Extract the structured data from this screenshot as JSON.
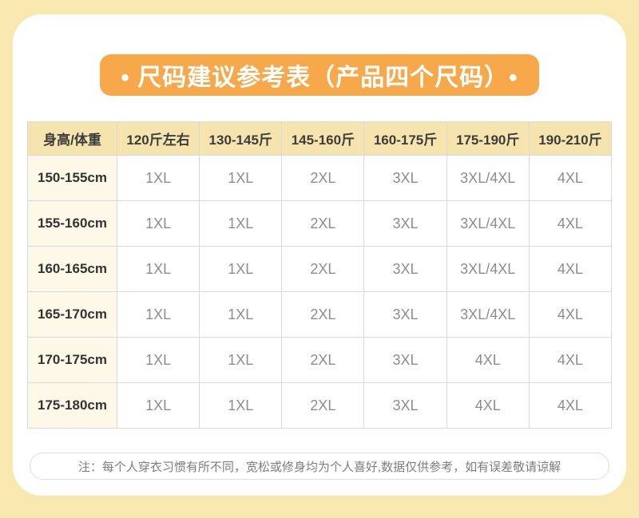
{
  "title": {
    "text": "• 尺码建议参考表（产品四个尺码）•"
  },
  "chart_data": {
    "type": "table",
    "title": "尺码建议参考表（产品四个尺码）",
    "columns": [
      "身高/体重",
      "120斤左右",
      "130-145斤",
      "145-160斤",
      "160-175斤",
      "175-190斤",
      "190-210斤"
    ],
    "rows": [
      [
        "150-155cm",
        "1XL",
        "1XL",
        "2XL",
        "3XL",
        "3XL/4XL",
        "4XL"
      ],
      [
        "155-160cm",
        "1XL",
        "1XL",
        "2XL",
        "3XL",
        "3XL/4XL",
        "4XL"
      ],
      [
        "160-165cm",
        "1XL",
        "1XL",
        "2XL",
        "3XL",
        "3XL/4XL",
        "4XL"
      ],
      [
        "165-170cm",
        "1XL",
        "1XL",
        "2XL",
        "3XL",
        "3XL/4XL",
        "4XL"
      ],
      [
        "170-175cm",
        "1XL",
        "1XL",
        "2XL",
        "3XL",
        "4XL",
        "4XL"
      ],
      [
        "175-180cm",
        "1XL",
        "1XL",
        "2XL",
        "3XL",
        "4XL",
        "4XL"
      ]
    ],
    "layout_hints": {
      "first_column_is_header": true,
      "grid": true
    }
  },
  "note": {
    "text": "注：每个人穿衣习惯有所不同，宽松或修身均为个人喜好,数据仅供参考，如有误差敬请谅解"
  },
  "colors": {
    "page_background": "#f8e8af",
    "card_background": "#ffffff",
    "banner_background": "#f6a84b",
    "banner_text": "#ffffff",
    "header_row_background": "#f5e4ae",
    "height_column_background": "#fdf8e7",
    "grid_line": "#d9d9d9",
    "dark_text": "#3c3c3c",
    "size_value_text": "#8d8d8d",
    "note_text": "#7d7d7d"
  }
}
